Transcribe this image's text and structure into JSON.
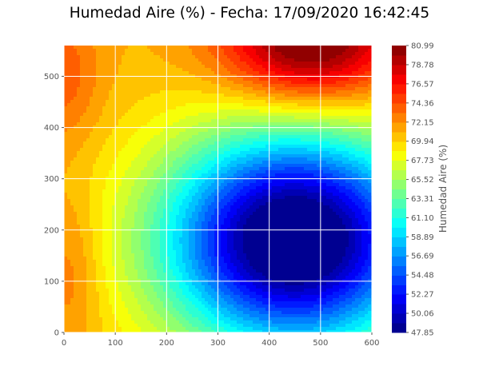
{
  "chart_data": {
    "type": "heatmap",
    "title": "Humedad Aire (%) - Fecha: 17/09/2020 16:42:45",
    "xlabel": "",
    "ylabel": "",
    "xlim": [
      0,
      600
    ],
    "ylim": [
      0,
      560
    ],
    "x_ticks": [
      "0",
      "100",
      "200",
      "300",
      "400",
      "500",
      "600"
    ],
    "y_ticks": [
      "0",
      "100",
      "200",
      "300",
      "400",
      "500"
    ],
    "grid": true,
    "colormap": "jet",
    "colorbar": {
      "label": "Humedad Aire (%)",
      "min": 47.85,
      "max": 80.99,
      "ticks": [
        "47.85",
        "50.06",
        "52.27",
        "54.48",
        "56.69",
        "58.89",
        "61.10",
        "63.31",
        "65.52",
        "67.73",
        "69.94",
        "72.15",
        "74.36",
        "76.57",
        "78.78",
        "80.99"
      ],
      "levels": 30
    },
    "field_features": [
      {
        "kind": "maximum",
        "x": 480,
        "y": 540,
        "value": 80.99
      },
      {
        "kind": "minimum",
        "x": 450,
        "y": 180,
        "value": 47.85
      },
      {
        "kind": "local_high",
        "x": 0,
        "y": 500,
        "value": 73.5
      },
      {
        "kind": "local_high",
        "x": 20,
        "y": 120,
        "value": 72.5
      }
    ]
  }
}
